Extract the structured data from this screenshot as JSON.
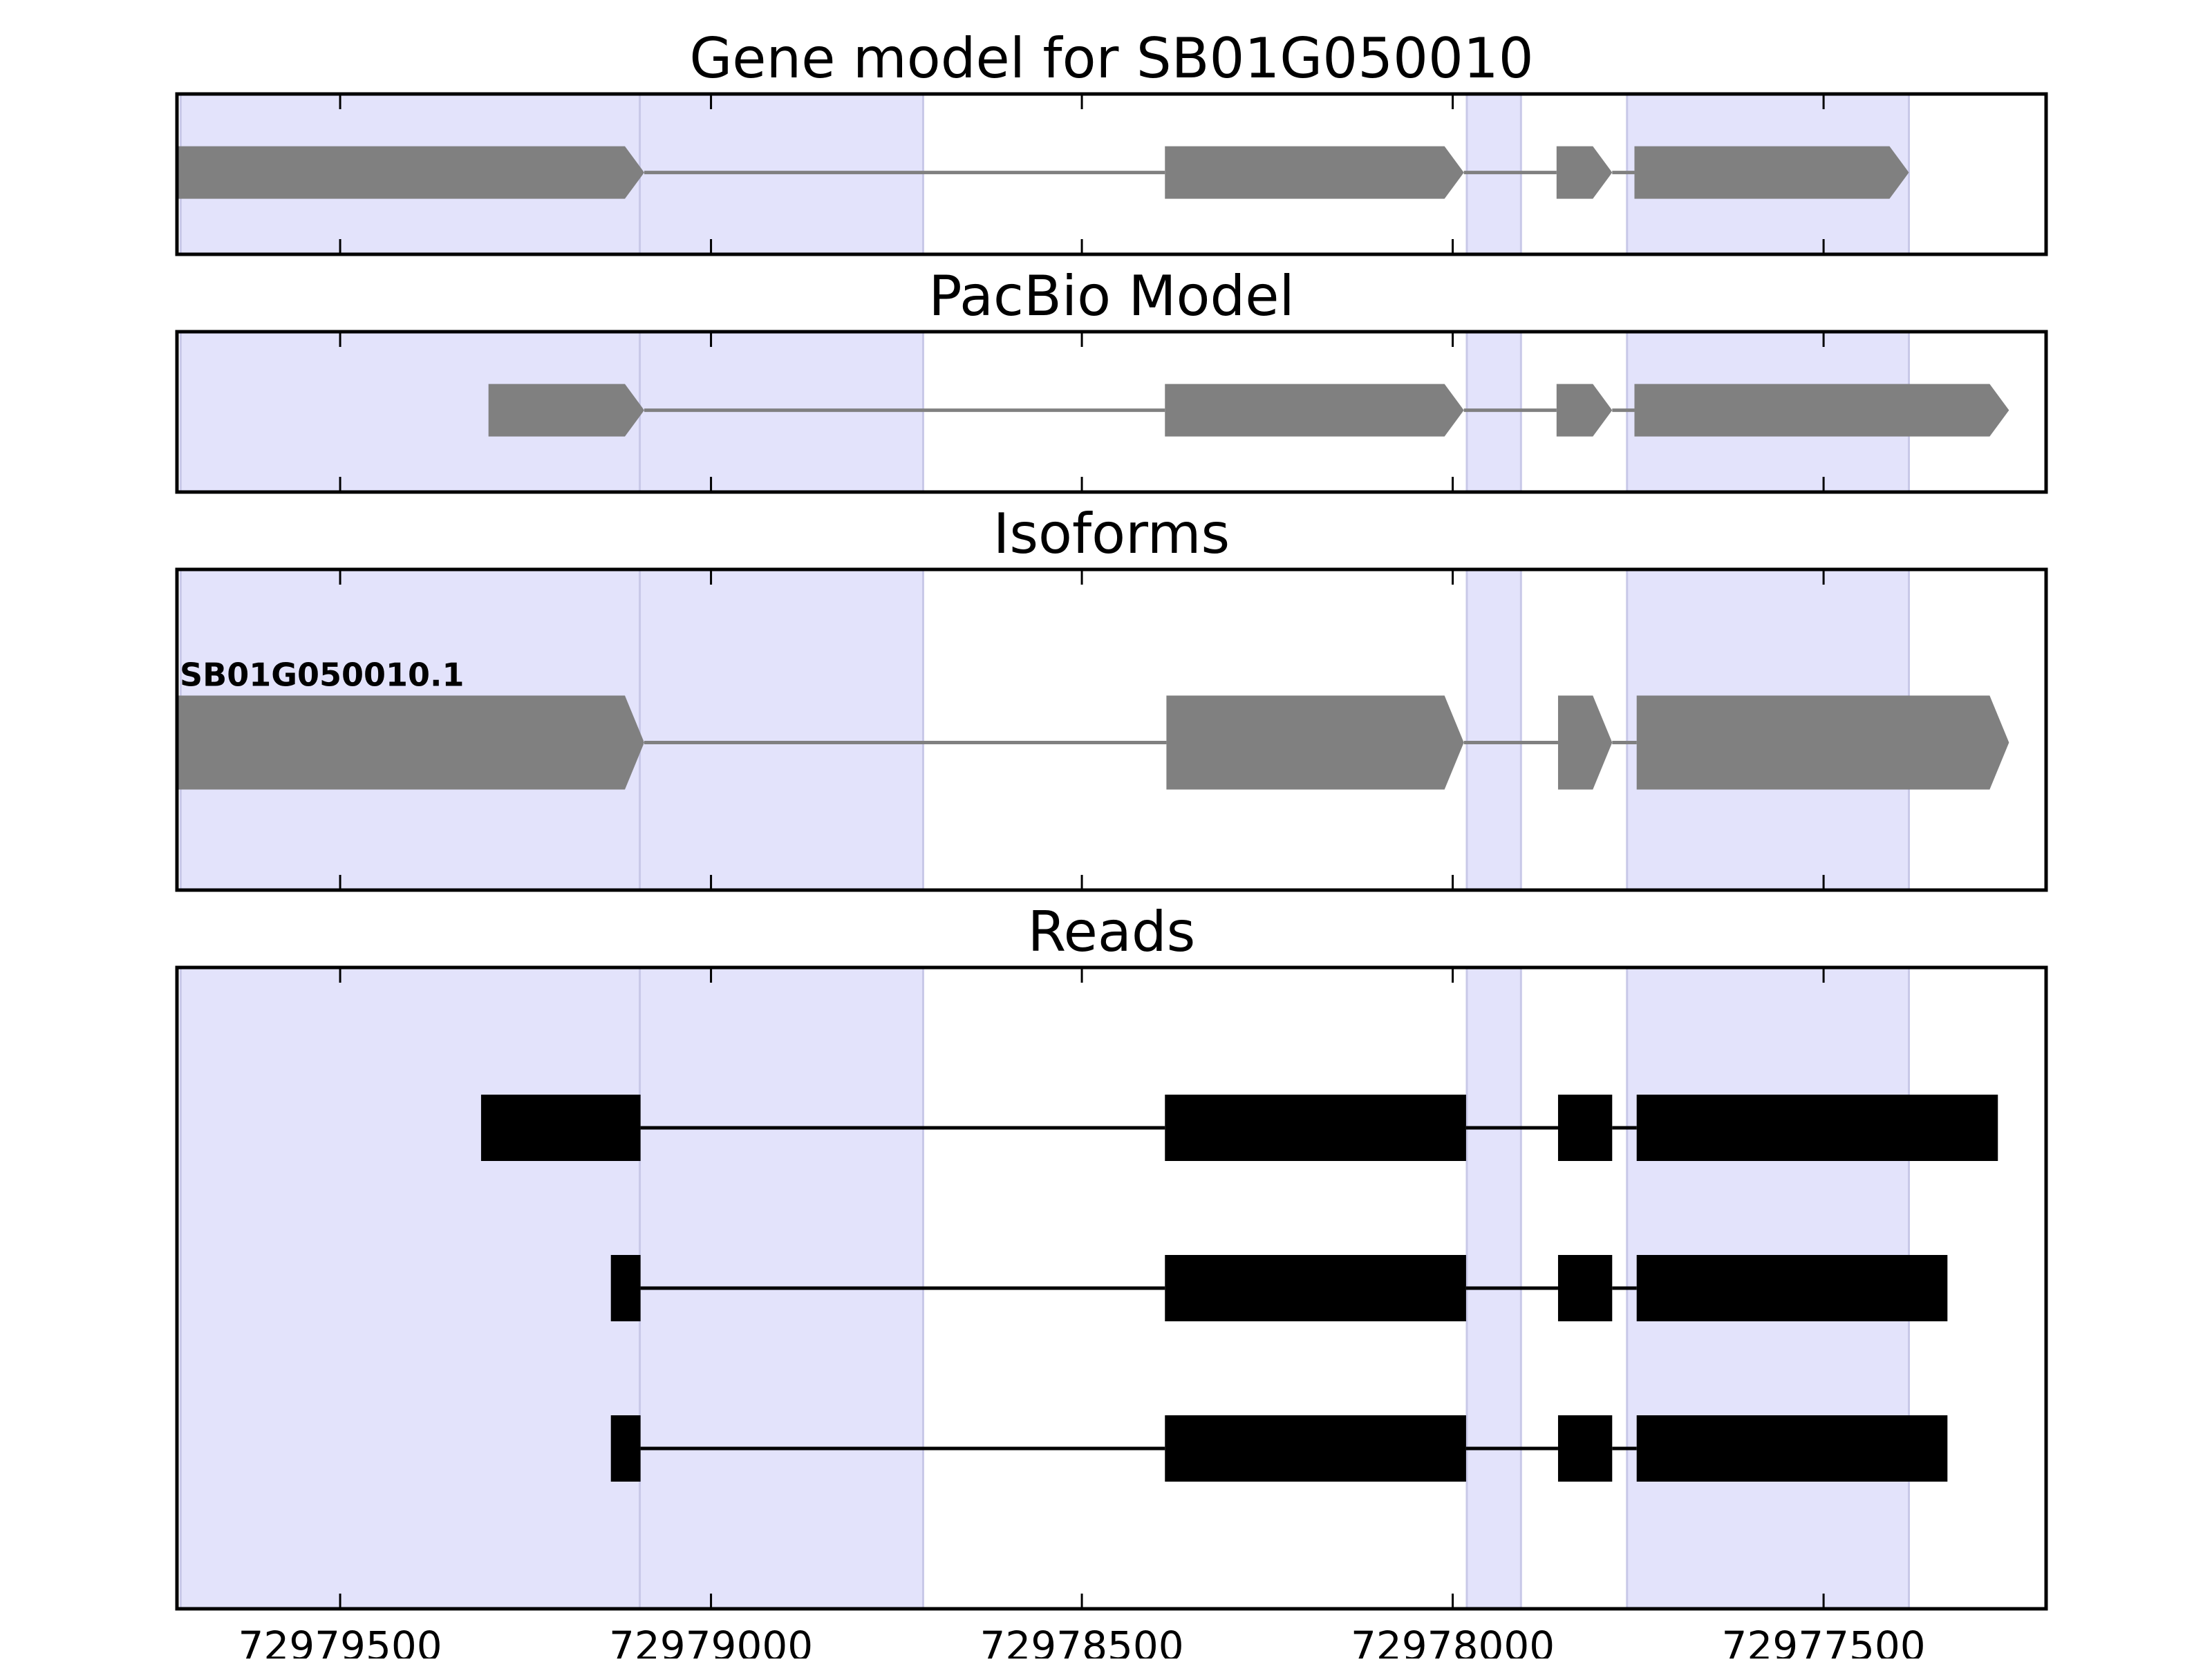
{
  "chart_data": {
    "type": "gene-track",
    "x_axis": {
      "reversed": true,
      "range": [
        72979720,
        72977200
      ],
      "ticks": [
        72979500,
        72979000,
        72978500,
        72978000,
        72977500
      ],
      "tick_labels": [
        "72979500",
        "72979000",
        "72978500",
        "72978000",
        "72977500"
      ]
    },
    "exon_highlights": [
      {
        "start": 72979286,
        "end": 72978714
      },
      {
        "start": 72977981,
        "end": 72977908
      },
      {
        "start": 72977765,
        "end": 72977385
      },
      {
        "start": 72979715,
        "end": 72979096
      }
    ],
    "panels": [
      {
        "title": "Gene model for SB01G050010",
        "kind": "arrows",
        "rows": [
          {
            "label": "",
            "exons": [
              {
                "start": 72979720,
                "end": 72979090
              },
              {
                "start": 72978388,
                "end": 72977985
              },
              {
                "start": 72977860,
                "end": 72977785
              },
              {
                "start": 72977755,
                "end": 72977385
              }
            ]
          }
        ]
      },
      {
        "title": "PacBio Model",
        "kind": "arrows",
        "rows": [
          {
            "label": "",
            "exons": [
              {
                "start": 72979300,
                "end": 72979090
              },
              {
                "start": 72978388,
                "end": 72977985
              },
              {
                "start": 72977860,
                "end": 72977785
              },
              {
                "start": 72977755,
                "end": 72977250
              }
            ]
          }
        ]
      },
      {
        "title": "Isoforms",
        "kind": "arrows",
        "rows": [
          {
            "label": "SB01G050010.1",
            "exons": [
              {
                "start": 72979720,
                "end": 72979090
              },
              {
                "start": 72978386,
                "end": 72977985
              },
              {
                "start": 72977858,
                "end": 72977785
              },
              {
                "start": 72977752,
                "end": 72977250
              }
            ]
          }
        ]
      },
      {
        "title": "Reads",
        "kind": "blocks",
        "rows": [
          {
            "label": "",
            "exons": [
              {
                "start": 72979310,
                "end": 72979095
              },
              {
                "start": 72978388,
                "end": 72977982
              },
              {
                "start": 72977858,
                "end": 72977785
              },
              {
                "start": 72977752,
                "end": 72977265
              }
            ]
          },
          {
            "label": "",
            "exons": [
              {
                "start": 72979135,
                "end": 72979095
              },
              {
                "start": 72978388,
                "end": 72977982
              },
              {
                "start": 72977858,
                "end": 72977785
              },
              {
                "start": 72977752,
                "end": 72977333
              }
            ]
          },
          {
            "label": "",
            "exons": [
              {
                "start": 72979135,
                "end": 72979095
              },
              {
                "start": 72978388,
                "end": 72977982
              },
              {
                "start": 72977858,
                "end": 72977785
              },
              {
                "start": 72977752,
                "end": 72977333
              }
            ]
          }
        ]
      }
    ],
    "colors": {
      "exon_arrow": "#808080",
      "intron_line_arrow": "#808080",
      "read_block": "#000000",
      "intron_line_read": "#000000",
      "highlight": "#e3e3fb",
      "highlight_edge": "#c8c8e8",
      "frame": "#000000"
    }
  }
}
